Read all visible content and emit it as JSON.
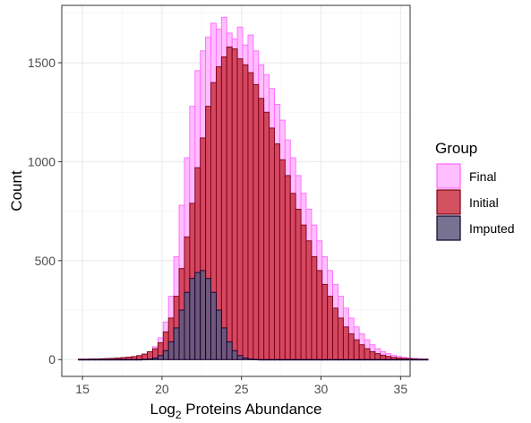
{
  "chart_data": {
    "type": "bar",
    "subtype": "overlaid-histogram",
    "title": "",
    "xlabel": "Log2 Proteins Abundance",
    "xlabel_base": "Log",
    "xlabel_subscript": "2",
    "xlabel_rest": " Proteins Abundance",
    "ylabel": "Count",
    "xlim": [
      13.7,
      35.6
    ],
    "ylim": [
      -85,
      1790
    ],
    "x_ticks": [
      15,
      20,
      25,
      30,
      35
    ],
    "y_ticks": [
      0,
      500,
      1000,
      1500
    ],
    "grid": true,
    "legend": {
      "title": "Group",
      "position": "right"
    },
    "bin_start": 14.75,
    "bin_width": 0.333,
    "series": [
      {
        "name": "Final",
        "fill": "#ffb3ff",
        "stroke": "#ff66ff",
        "values": [
          2,
          2,
          3,
          3,
          4,
          5,
          6,
          8,
          10,
          12,
          15,
          20,
          28,
          40,
          65,
          110,
          190,
          320,
          520,
          780,
          1020,
          1280,
          1460,
          1560,
          1630,
          1700,
          1670,
          1730,
          1650,
          1620,
          1680,
          1590,
          1640,
          1560,
          1490,
          1440,
          1370,
          1290,
          1210,
          1110,
          1020,
          930,
          840,
          760,
          680,
          600,
          520,
          450,
          380,
          320,
          260,
          210,
          165,
          130,
          100,
          75,
          55,
          40,
          30,
          22,
          16,
          11,
          8,
          6,
          4,
          3
        ]
      },
      {
        "name": "Initial",
        "fill": "#cc3344",
        "stroke": "#7a0016",
        "values": [
          2,
          2,
          3,
          3,
          4,
          5,
          6,
          8,
          10,
          12,
          15,
          20,
          28,
          40,
          55,
          85,
          140,
          210,
          320,
          460,
          620,
          790,
          970,
          1120,
          1280,
          1400,
          1480,
          1530,
          1580,
          1570,
          1520,
          1490,
          1450,
          1390,
          1320,
          1250,
          1170,
          1090,
          1010,
          930,
          840,
          760,
          680,
          600,
          520,
          450,
          380,
          320,
          260,
          210,
          165,
          130,
          100,
          75,
          55,
          40,
          30,
          22,
          16,
          11,
          8,
          6,
          4,
          3,
          2,
          2
        ]
      },
      {
        "name": "Imputed",
        "fill": "#5e5a7e",
        "stroke": "#0a0030",
        "values": [
          0,
          0,
          0,
          0,
          0,
          0,
          0,
          0,
          0,
          0,
          0,
          0,
          1,
          3,
          8,
          20,
          45,
          90,
          160,
          250,
          340,
          410,
          440,
          450,
          410,
          340,
          250,
          160,
          90,
          45,
          20,
          8,
          3,
          1,
          0,
          0,
          0,
          0,
          0,
          0,
          0,
          0,
          0,
          0,
          0,
          0,
          0,
          0,
          0,
          0,
          0,
          0,
          0,
          0,
          0,
          0,
          0,
          0,
          0,
          0,
          0,
          0,
          0,
          0,
          0,
          0
        ]
      }
    ]
  }
}
